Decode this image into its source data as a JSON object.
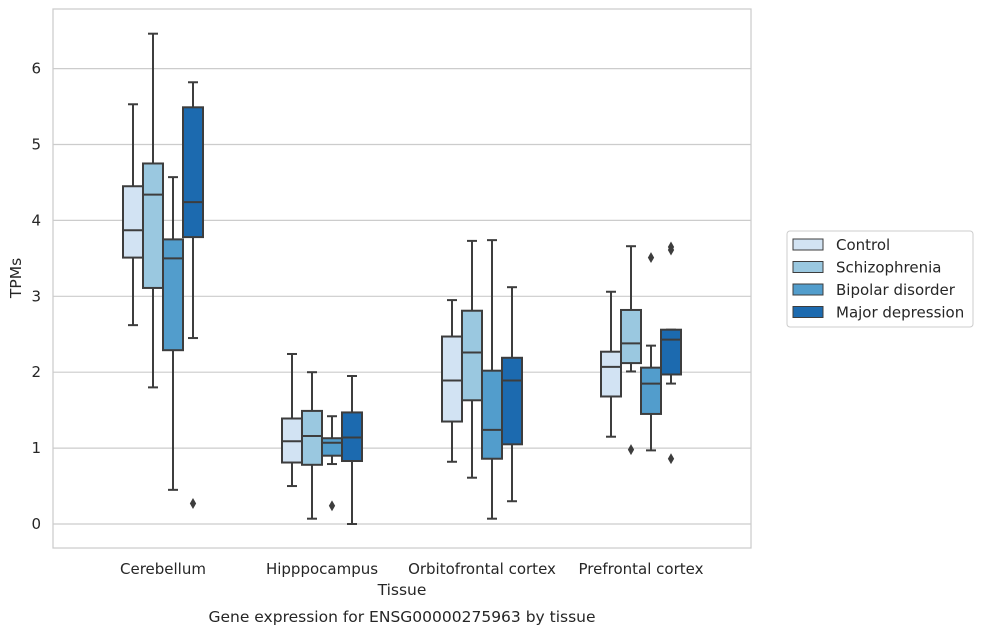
{
  "caption": "Gene expression for ENSG00000275963 by tissue",
  "chart_data": {
    "type": "box",
    "xlabel": "Tissue",
    "ylabel": "TPMs",
    "ylim": [
      -0.3,
      6.8
    ],
    "yticks": [
      0,
      1,
      2,
      3,
      4,
      5,
      6
    ],
    "grid": "horizontal",
    "legend_position": "right",
    "categories": [
      "Cerebellum",
      "Hipppocampus",
      "Orbitofrontal cortex",
      "Prefrontal cortex"
    ],
    "series": [
      {
        "name": "Control",
        "color": "#d2e3f3",
        "boxes": [
          {
            "whislo": 2.62,
            "q1": 3.51,
            "med": 3.87,
            "q3": 4.45,
            "whishi": 5.53,
            "fliers": []
          },
          {
            "whislo": 0.5,
            "q1": 0.81,
            "med": 1.09,
            "q3": 1.39,
            "whishi": 2.24,
            "fliers": []
          },
          {
            "whislo": 0.82,
            "q1": 1.35,
            "med": 1.89,
            "q3": 2.47,
            "whishi": 2.95,
            "fliers": []
          },
          {
            "whislo": 1.15,
            "q1": 1.68,
            "med": 2.07,
            "q3": 2.27,
            "whishi": 3.06,
            "fliers": []
          }
        ]
      },
      {
        "name": "Schizophrenia",
        "color": "#9ac8e0",
        "boxes": [
          {
            "whislo": 1.8,
            "q1": 3.11,
            "med": 4.34,
            "q3": 4.75,
            "whishi": 6.46,
            "fliers": []
          },
          {
            "whislo": 0.07,
            "q1": 0.78,
            "med": 1.16,
            "q3": 1.49,
            "whishi": 2.0,
            "fliers": []
          },
          {
            "whislo": 0.61,
            "q1": 1.63,
            "med": 2.26,
            "q3": 2.81,
            "whishi": 3.73,
            "fliers": []
          },
          {
            "whislo": 2.01,
            "q1": 2.12,
            "med": 2.38,
            "q3": 2.82,
            "whishi": 3.66,
            "fliers": [
              0.98
            ]
          }
        ]
      },
      {
        "name": "Bipolar disorder",
        "color": "#529dcc",
        "boxes": [
          {
            "whislo": 0.45,
            "q1": 2.29,
            "med": 3.5,
            "q3": 3.75,
            "whishi": 4.57,
            "fliers": []
          },
          {
            "whislo": 0.79,
            "q1": 0.9,
            "med": 1.07,
            "q3": 1.13,
            "whishi": 1.42,
            "fliers": [
              0.24
            ]
          },
          {
            "whislo": 0.07,
            "q1": 0.86,
            "med": 1.24,
            "q3": 2.02,
            "whishi": 3.74,
            "fliers": []
          },
          {
            "whislo": 0.97,
            "q1": 1.45,
            "med": 1.85,
            "q3": 2.06,
            "whishi": 2.35,
            "fliers": [
              3.51
            ]
          }
        ]
      },
      {
        "name": "Major depression",
        "color": "#1c6aaf",
        "boxes": [
          {
            "whislo": 2.45,
            "q1": 3.78,
            "med": 4.24,
            "q3": 5.49,
            "whishi": 5.82,
            "fliers": [
              0.27
            ]
          },
          {
            "whislo": 0.0,
            "q1": 0.83,
            "med": 1.14,
            "q3": 1.47,
            "whishi": 1.95,
            "fliers": []
          },
          {
            "whislo": 0.3,
            "q1": 1.05,
            "med": 1.89,
            "q3": 2.19,
            "whishi": 3.12,
            "fliers": []
          },
          {
            "whislo": 1.85,
            "q1": 1.97,
            "med": 2.43,
            "q3": 2.56,
            "whishi": 2.56,
            "fliers": [
              0.86,
              3.61,
              3.65
            ]
          }
        ]
      }
    ]
  }
}
